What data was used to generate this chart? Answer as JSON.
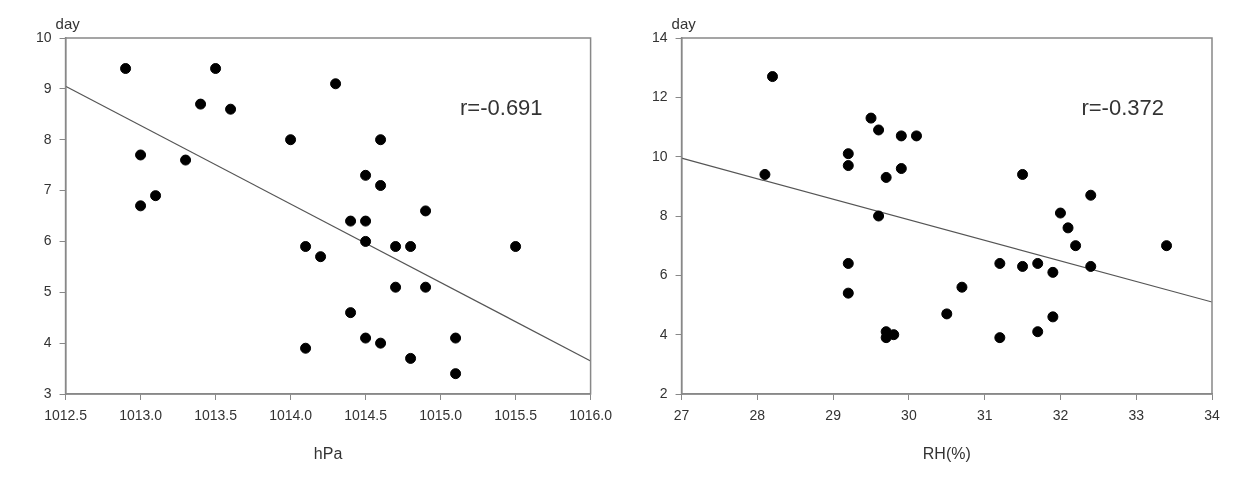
{
  "chart_data": [
    {
      "type": "scatter",
      "xlabel": "hPa",
      "ylabel": "day",
      "annotations": [
        "r=-0.691"
      ],
      "xlim": [
        1012.5,
        1016
      ],
      "ylim": [
        3,
        10
      ],
      "xticks": [
        1012.5,
        {
          "value": 1013,
          "label": "1013.0"
        },
        1013.5,
        {
          "value": 1014,
          "label": "1014.0"
        },
        1014.5,
        {
          "value": 1015,
          "label": "1015.0"
        },
        1015.5,
        {
          "value": 1016,
          "label": "1016.0"
        }
      ],
      "yticks": [
        3,
        4,
        5,
        6,
        7,
        8,
        9,
        10
      ],
      "series": [
        {
          "type": "scatter",
          "marker": "circle",
          "color": "#000000",
          "x": [
            1012.9,
            1013.5,
            1014.3,
            1013.4,
            1013.6,
            1014.0,
            1014.6,
            1013.0,
            1013.3,
            1014.5,
            1014.6,
            1013.1,
            1013.0,
            1014.9,
            1014.4,
            1014.5,
            1014.5,
            1014.1,
            1014.7,
            1014.8,
            1015.5,
            1014.2,
            1014.7,
            1014.9,
            1014.4,
            1014.5,
            1015.1,
            1014.6,
            1014.1,
            1014.8,
            1015.1
          ],
          "values": [
            9.4,
            9.4,
            9.1,
            8.7,
            8.6,
            8.0,
            8.0,
            7.7,
            7.6,
            7.3,
            7.1,
            6.9,
            6.7,
            6.6,
            6.4,
            6.4,
            6.0,
            5.9,
            5.9,
            5.9,
            5.9,
            5.7,
            5.1,
            5.1,
            4.6,
            4.1,
            4.1,
            4.0,
            3.9,
            3.7,
            3.4
          ]
        },
        {
          "type": "line",
          "marker": "none",
          "color": "#555555",
          "x": [
            1012.5,
            1016
          ],
          "values": [
            9.05,
            3.65
          ]
        }
      ]
    },
    {
      "type": "scatter",
      "xlabel": "RH(%)",
      "ylabel": "day",
      "annotations": [
        "r=-0.372"
      ],
      "xlim": [
        27,
        34
      ],
      "ylim": [
        2,
        14
      ],
      "xticks": [
        27,
        28,
        29,
        30,
        31,
        32,
        33,
        34
      ],
      "yticks": [
        2,
        4,
        6,
        8,
        10,
        12,
        14
      ],
      "series": [
        {
          "type": "scatter",
          "marker": "circle",
          "color": "#000000",
          "x": [
            28.2,
            29.5,
            29.6,
            29.9,
            30.1,
            29.2,
            29.2,
            29.9,
            28.1,
            31.5,
            29.7,
            32.4,
            32.0,
            29.6,
            32.1,
            32.2,
            33.4,
            29.2,
            31.2,
            31.7,
            31.5,
            32.4,
            31.9,
            30.7,
            29.2,
            30.5,
            31.9,
            29.7,
            31.7,
            29.8,
            29.7,
            31.2
          ],
          "values": [
            12.7,
            11.3,
            10.9,
            10.7,
            10.7,
            10.1,
            9.7,
            9.6,
            9.4,
            9.4,
            9.3,
            8.7,
            8.1,
            8.0,
            7.6,
            7.0,
            7.0,
            6.4,
            6.4,
            6.4,
            6.3,
            6.3,
            6.1,
            5.6,
            5.4,
            4.7,
            4.6,
            4.1,
            4.1,
            4.0,
            3.9,
            3.9
          ]
        },
        {
          "type": "line",
          "marker": "none",
          "color": "#555555",
          "x": [
            27,
            34
          ],
          "values": [
            9.95,
            5.1
          ]
        }
      ]
    }
  ]
}
